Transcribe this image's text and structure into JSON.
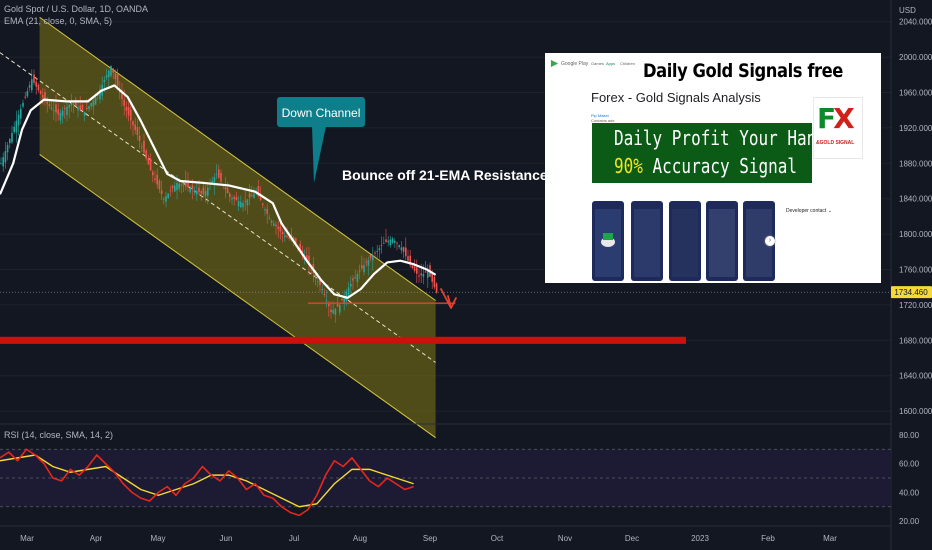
{
  "header": {
    "symbol_line": "Gold Spot / U.S. Dollar, 1D, OANDA",
    "ema_line": "EMA (21, close, 0, SMA, 5)",
    "rsi_line": "RSI (14, close, SMA, 14, 2)",
    "currency": "USD"
  },
  "annotations": {
    "down_channel": "Down Channel",
    "bounce": "Bounce off 21-EMA Resistance"
  },
  "colors": {
    "background": "#131722",
    "channel_fill": "#6b6416",
    "channel_line": "#d6c840",
    "support_band": "#c8120c",
    "ema": "#ffffff",
    "candle_up": "#26a69a",
    "candle_down": "#ef5350",
    "rsi_line": "#e8261c",
    "rsi_ma": "#f5d838",
    "callout": "#0e7f8a",
    "arrow": "#e8402f",
    "price_tag": "#f5d83a"
  },
  "ad": {
    "store": "Google Play",
    "nav": [
      "Games",
      "Apps",
      "Children"
    ],
    "banner_title": "Daily Gold Signals free",
    "app_title": "Forex - Gold Signals Analysis",
    "developer": "Pip Maker",
    "developer_sub": "Contains ads",
    "green_line1": "Daily Profit Your Hand",
    "green_line2_pct": "90%",
    "green_line2_rest": " Accuracy Signal",
    "logo_f": "F",
    "logo_x": "X",
    "logo_sub": "&GOLD SIGNAL",
    "developer_contact": "Developer contact",
    "chevron": "⌄",
    "next_arrow": "›"
  },
  "chart_data": [
    {
      "type": "candlestick",
      "title": "Gold Spot / U.S. Dollar, 1D, OANDA",
      "x_axis": [
        "Mar",
        "Apr",
        "May",
        "Jun",
        "Jul",
        "Aug",
        "Sep",
        "Oct",
        "Nov",
        "Dec",
        "2023",
        "Feb",
        "Mar"
      ],
      "y_ticks": [
        2040,
        2000,
        1960,
        1920,
        1880,
        1840,
        1800,
        1760,
        1720,
        1680,
        1640,
        1600
      ],
      "ylim": [
        1590,
        2060
      ],
      "y_tick_labels": [
        "2040.000",
        "2000.000",
        "1960.000",
        "1920.000",
        "1880.000",
        "1840.000",
        "1800.000",
        "1760.000",
        "1720.000",
        "1680.000",
        "1640.000",
        "1600.000"
      ],
      "last_price": 1734.46,
      "last_price_label": "1734.460",
      "support_band": [
        1676,
        1684
      ],
      "close_path": [
        [
          0,
          1880
        ],
        [
          8,
          1935
        ],
        [
          14,
          1975
        ],
        [
          20,
          1950
        ],
        [
          26,
          1935
        ],
        [
          32,
          1948
        ],
        [
          38,
          1938
        ],
        [
          44,
          1958
        ],
        [
          50,
          1990
        ],
        [
          56,
          1945
        ],
        [
          62,
          1912
        ],
        [
          68,
          1872
        ],
        [
          74,
          1840
        ],
        [
          80,
          1858
        ],
        [
          86,
          1852
        ],
        [
          92,
          1845
        ],
        [
          98,
          1868
        ],
        [
          104,
          1842
        ],
        [
          110,
          1835
        ],
        [
          116,
          1848
        ],
        [
          122,
          1818
        ],
        [
          128,
          1800
        ],
        [
          134,
          1790
        ],
        [
          140,
          1765
        ],
        [
          146,
          1738
        ],
        [
          150,
          1712
        ],
        [
          154,
          1720
        ],
        [
          158,
          1740
        ],
        [
          162,
          1755
        ],
        [
          166,
          1768
        ],
        [
          170,
          1778
        ],
        [
          174,
          1790
        ],
        [
          178,
          1795
        ],
        [
          182,
          1785
        ],
        [
          186,
          1765
        ],
        [
          190,
          1752
        ],
        [
          194,
          1758
        ],
        [
          198,
          1734
        ]
      ],
      "ema21_path": [
        [
          0,
          1845
        ],
        [
          6,
          1880
        ],
        [
          10,
          1918
        ],
        [
          14,
          1940
        ],
        [
          20,
          1952
        ],
        [
          30,
          1950
        ],
        [
          40,
          1950
        ],
        [
          46,
          1962
        ],
        [
          52,
          1968
        ],
        [
          58,
          1955
        ],
        [
          64,
          1928
        ],
        [
          70,
          1898
        ],
        [
          76,
          1868
        ],
        [
          82,
          1860
        ],
        [
          92,
          1858
        ],
        [
          104,
          1855
        ],
        [
          116,
          1848
        ],
        [
          124,
          1835
        ],
        [
          128,
          1812
        ],
        [
          134,
          1790
        ],
        [
          140,
          1768
        ],
        [
          146,
          1748
        ],
        [
          152,
          1732
        ],
        [
          158,
          1728
        ],
        [
          164,
          1738
        ],
        [
          170,
          1755
        ],
        [
          176,
          1768
        ],
        [
          182,
          1770
        ],
        [
          188,
          1766
        ],
        [
          194,
          1760
        ],
        [
          198,
          1754
        ]
      ],
      "channel_upper": [
        [
          18,
          2045
        ],
        [
          198,
          1725
        ]
      ],
      "channel_lower": [
        [
          18,
          1890
        ],
        [
          198,
          1570
        ]
      ],
      "channel_mid_dashed": [
        [
          0,
          2005
        ],
        [
          198,
          1655
        ]
      ],
      "support_line": [
        [
          140,
          1722
        ],
        [
          188,
          1722
        ]
      ]
    },
    {
      "type": "line",
      "title": "RSI (14, close, SMA, 14, 2)",
      "y_ticks": [
        80,
        60,
        40,
        20
      ],
      "y_tick_labels": [
        "80.00",
        "60.00",
        "40.00",
        "20.00"
      ],
      "ylim": [
        18,
        82
      ],
      "bands": [
        30,
        50,
        70
      ],
      "series": [
        {
          "role": "rsi",
          "values": [
            [
              0,
              64
            ],
            [
              4,
              68
            ],
            [
              8,
              62
            ],
            [
              12,
              70
            ],
            [
              16,
              66
            ],
            [
              20,
              60
            ],
            [
              24,
              50
            ],
            [
              28,
              48
            ],
            [
              32,
              56
            ],
            [
              36,
              52
            ],
            [
              40,
              58
            ],
            [
              44,
              66
            ],
            [
              48,
              60
            ],
            [
              52,
              54
            ],
            [
              56,
              46
            ],
            [
              60,
              40
            ],
            [
              64,
              36
            ],
            [
              68,
              34
            ],
            [
              72,
              40
            ],
            [
              76,
              44
            ],
            [
              80,
              38
            ],
            [
              84,
              46
            ],
            [
              88,
              50
            ],
            [
              92,
              58
            ],
            [
              96,
              52
            ],
            [
              100,
              48
            ],
            [
              104,
              55
            ],
            [
              108,
              50
            ],
            [
              112,
              42
            ],
            [
              116,
              46
            ],
            [
              120,
              38
            ],
            [
              124,
              36
            ],
            [
              128,
              30
            ],
            [
              132,
              26
            ],
            [
              136,
              24
            ],
            [
              140,
              28
            ],
            [
              144,
              38
            ],
            [
              148,
              52
            ],
            [
              152,
              62
            ],
            [
              156,
              58
            ],
            [
              160,
              64
            ],
            [
              164,
              56
            ],
            [
              168,
              48
            ],
            [
              172,
              44
            ],
            [
              176,
              50
            ],
            [
              180,
              46
            ],
            [
              184,
              42
            ],
            [
              188,
              44
            ]
          ]
        },
        {
          "role": "ma",
          "values": [
            [
              0,
              62
            ],
            [
              8,
              64
            ],
            [
              16,
              66
            ],
            [
              24,
              58
            ],
            [
              32,
              54
            ],
            [
              40,
              56
            ],
            [
              48,
              58
            ],
            [
              56,
              50
            ],
            [
              64,
              42
            ],
            [
              72,
              38
            ],
            [
              80,
              42
            ],
            [
              88,
              46
            ],
            [
              96,
              52
            ],
            [
              104,
              52
            ],
            [
              112,
              48
            ],
            [
              120,
              42
            ],
            [
              128,
              36
            ],
            [
              136,
              30
            ],
            [
              144,
              32
            ],
            [
              152,
              46
            ],
            [
              160,
              56
            ],
            [
              168,
              56
            ],
            [
              176,
              52
            ],
            [
              184,
              48
            ],
            [
              188,
              46
            ]
          ]
        }
      ]
    }
  ]
}
